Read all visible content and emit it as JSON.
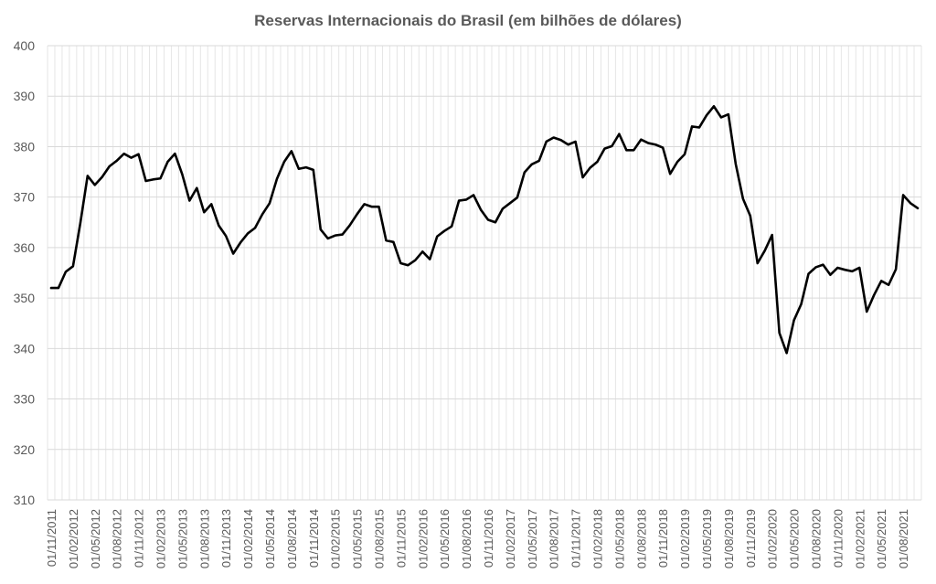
{
  "chart_data": {
    "type": "line",
    "title": "Reservas Internacionais do Brasil (em bilhões de dólares)",
    "xlabel": "",
    "ylabel": "",
    "ylim": [
      310,
      400
    ],
    "yticks": [
      310,
      320,
      330,
      340,
      350,
      360,
      370,
      380,
      390,
      400
    ],
    "xtick_labels": [
      "01/11/2011",
      "01/02/2012",
      "01/05/2012",
      "01/08/2012",
      "01/11/2012",
      "01/02/2013",
      "01/05/2013",
      "01/08/2013",
      "01/11/2013",
      "01/02/2014",
      "01/05/2014",
      "01/08/2014",
      "01/11/2014",
      "01/02/2015",
      "01/05/2015",
      "01/08/2015",
      "01/11/2015",
      "01/02/2016",
      "01/05/2016",
      "01/08/2016",
      "01/11/2016",
      "01/02/2017",
      "01/05/2017",
      "01/08/2017",
      "01/11/2017",
      "01/02/2018",
      "01/05/2018",
      "01/08/2018",
      "01/11/2018",
      "01/02/2019",
      "01/05/2019",
      "01/08/2019",
      "01/11/2019",
      "01/02/2020",
      "01/05/2020",
      "01/08/2020",
      "01/11/2020",
      "01/02/2021",
      "01/05/2021",
      "01/08/2021"
    ],
    "grid": {
      "horizontal": true,
      "vertical": true
    },
    "legend": "none",
    "line_color": "#000000",
    "x_start": "11/2011",
    "x_end": "10/2021",
    "values": [
      352.0,
      352.0,
      355.2,
      356.3,
      364.8,
      374.2,
      372.4,
      374.0,
      376.1,
      377.2,
      378.6,
      377.8,
      378.5,
      373.2,
      373.5,
      373.7,
      377.0,
      378.6,
      374.5,
      369.3,
      371.8,
      367.0,
      368.6,
      364.4,
      362.3,
      358.8,
      361.0,
      362.8,
      363.9,
      366.6,
      368.8,
      373.6,
      377.0,
      379.1,
      375.6,
      375.9,
      375.4,
      363.6,
      361.8,
      362.4,
      362.6,
      364.4,
      366.6,
      368.6,
      368.1,
      368.1,
      361.4,
      361.1,
      356.9,
      356.5,
      357.5,
      359.2,
      357.7,
      362.2,
      363.3,
      364.2,
      369.3,
      369.5,
      370.4,
      367.5,
      365.5,
      365.0,
      367.7,
      368.8,
      369.9,
      374.9,
      376.5,
      377.2,
      381.0,
      381.8,
      381.3,
      380.4,
      381.0,
      373.9,
      375.8,
      377.0,
      379.6,
      380.1,
      382.5,
      379.3,
      379.3,
      381.4,
      380.7,
      380.4,
      379.8,
      374.6,
      377.0,
      378.5,
      384.0,
      383.8,
      386.2,
      388.0,
      385.8,
      386.4,
      376.6,
      369.7,
      366.3,
      356.9,
      359.4,
      362.5,
      343.1,
      339.1,
      345.6,
      348.8,
      354.8,
      356.1,
      356.6,
      354.6,
      356.0,
      355.6,
      355.3,
      356.0,
      347.3,
      350.6,
      353.4,
      352.6,
      355.7,
      370.4,
      368.8,
      367.8
    ]
  }
}
